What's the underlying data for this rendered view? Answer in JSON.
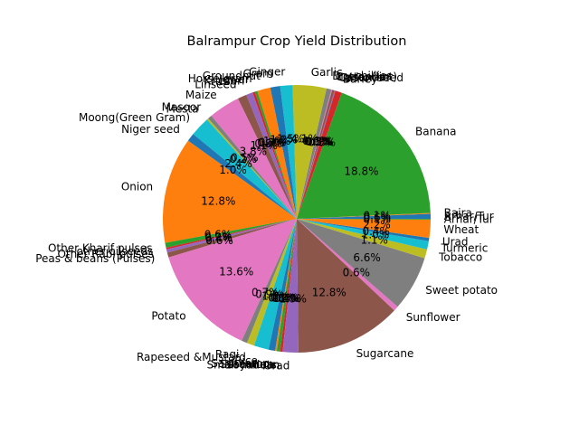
{
  "chart_data": {
    "type": "pie",
    "title": "Balrampur Crop Yield Distribution",
    "start_angle_deg": 0,
    "direction": "counterclockwise",
    "legend": "none",
    "pct_format": "%1.1f%%",
    "colors": [
      "#1f77b4",
      "#ff7f0e",
      "#2ca02c",
      "#d62728",
      "#9467bd",
      "#8c564b",
      "#e377c2",
      "#7f7f7f",
      "#bcbd22",
      "#17becf"
    ],
    "slices": [
      {
        "label": "Arhar/Tur",
        "value": 0.6
      },
      {
        "label": "Bajra",
        "value": 0.1
      },
      {
        "label": "Banana",
        "value": 19.0
      },
      {
        "label": "Barley",
        "value": 0.8
      },
      {
        "label": "Castor seed",
        "value": 0.1
      },
      {
        "label": "Coriander",
        "value": 0.3
      },
      {
        "label": "Cotton(lint)",
        "value": 0.1
      },
      {
        "label": "Dry chillies",
        "value": 0.6
      },
      {
        "label": "Garlic",
        "value": 4.1
      },
      {
        "label": "Ginger",
        "value": 1.5
      },
      {
        "label": "Gram",
        "value": 1.2
      },
      {
        "label": "Groundnut",
        "value": 1.6
      },
      {
        "label": "Horse-gram",
        "value": 0.3
      },
      {
        "label": "Jowar",
        "value": 0.3
      },
      {
        "label": "Khesari",
        "value": 0.8
      },
      {
        "label": "Linseed",
        "value": 1.1
      },
      {
        "label": "Maize",
        "value": 3.8
      },
      {
        "label": "Masoor",
        "value": 0.5
      },
      {
        "label": "Mesta",
        "value": 0.2
      },
      {
        "label": "Moong(Green Gram)",
        "value": 2.4
      },
      {
        "label": "Niger seed",
        "value": 1.0
      },
      {
        "label": "Onion",
        "value": 12.9
      },
      {
        "label": "Other Kharif pulses",
        "value": 0.6
      },
      {
        "label": "other oilseeds",
        "value": 0.2
      },
      {
        "label": "Other Rabi pulses",
        "value": 0.4
      },
      {
        "label": "Peas & beans (Pulses)",
        "value": 0.6
      },
      {
        "label": "Potato",
        "value": 13.7
      },
      {
        "label": "Ragi",
        "value": 0.7
      },
      {
        "label": "Rapeseed &Mustard",
        "value": 0.9
      },
      {
        "label": "Rice",
        "value": 1.8
      },
      {
        "label": "Sannhamp",
        "value": 0.8
      },
      {
        "label": "Sesamum",
        "value": 0.2
      },
      {
        "label": "Small millets",
        "value": 0.4
      },
      {
        "label": "Soyabean",
        "value": 0.3
      },
      {
        "label": "Urad",
        "value": 1.9
      },
      {
        "label": "Sugarcane",
        "value": 12.9
      },
      {
        "label": "Sunflower",
        "value": 0.6
      },
      {
        "label": "Sweet potato",
        "value": 6.7
      },
      {
        "label": "Tobacco",
        "value": 1.1
      },
      {
        "label": "Turmeric",
        "value": 1.0
      },
      {
        "label": "Urad",
        "value": 0.4
      },
      {
        "label": "Wheat",
        "value": 2.2
      },
      {
        "label": "Arhar/Tur",
        "value": 0.1
      }
    ]
  }
}
